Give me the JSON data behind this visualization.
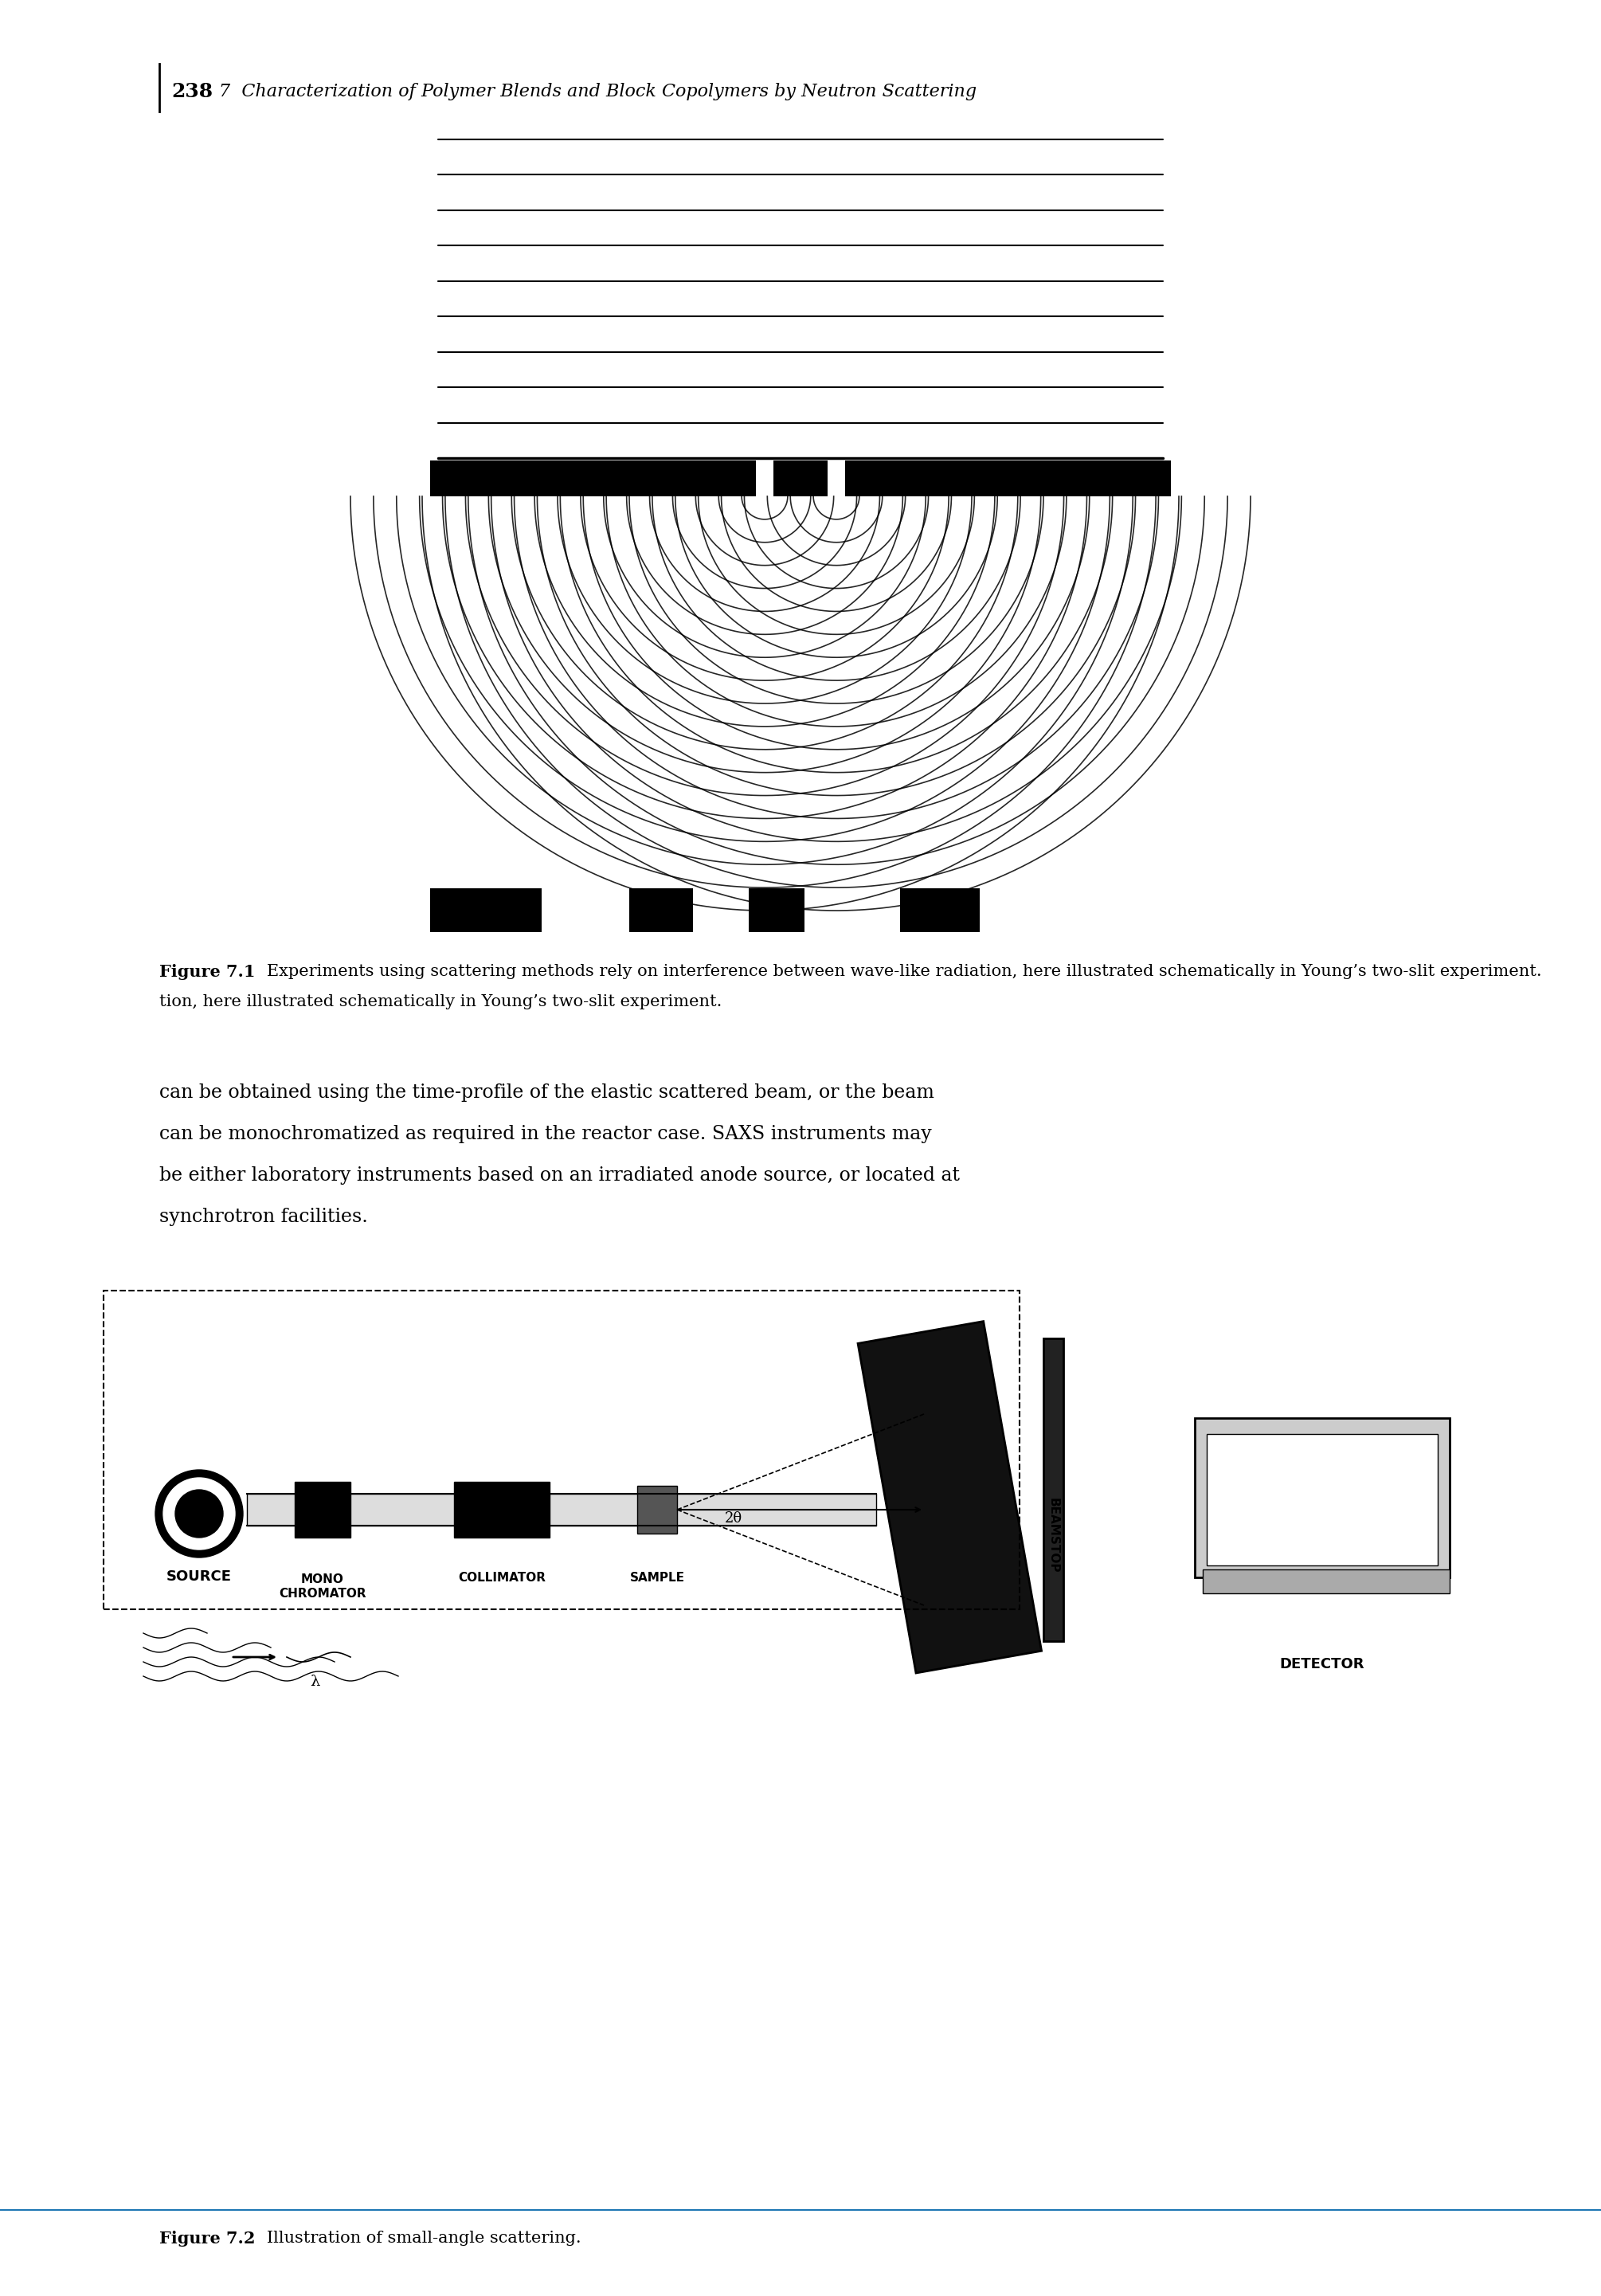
{
  "page_width": 20.1,
  "page_height": 28.82,
  "bg_color": "#ffffff",
  "header_text": "238",
  "header_italic": "7  Characterization of Polymer Blends and Block Copolymers by Neutron Scattering",
  "figure1_caption_bold": "Figure 7.1",
  "figure1_caption_rest": "   Experiments using scattering methods rely on interference between wave-like radiation, here illustrated schematically in Young’s two-slit experiment.",
  "body_text_line1": "can be obtained using the time-profile of the elastic scattered beam, or the beam",
  "body_text_line2": "can be monochromatized as required in the reactor case. SAXS instruments may",
  "body_text_line3": "be either laboratory instruments based on an irradiated anode source, or located at",
  "body_text_line4": "synchrotron facilities.",
  "figure2_caption_bold": "Figure 7.2",
  "figure2_caption_rest": "   Illustration of small-angle scattering.",
  "black": "#000000",
  "dark_gray": "#1a1a1a"
}
